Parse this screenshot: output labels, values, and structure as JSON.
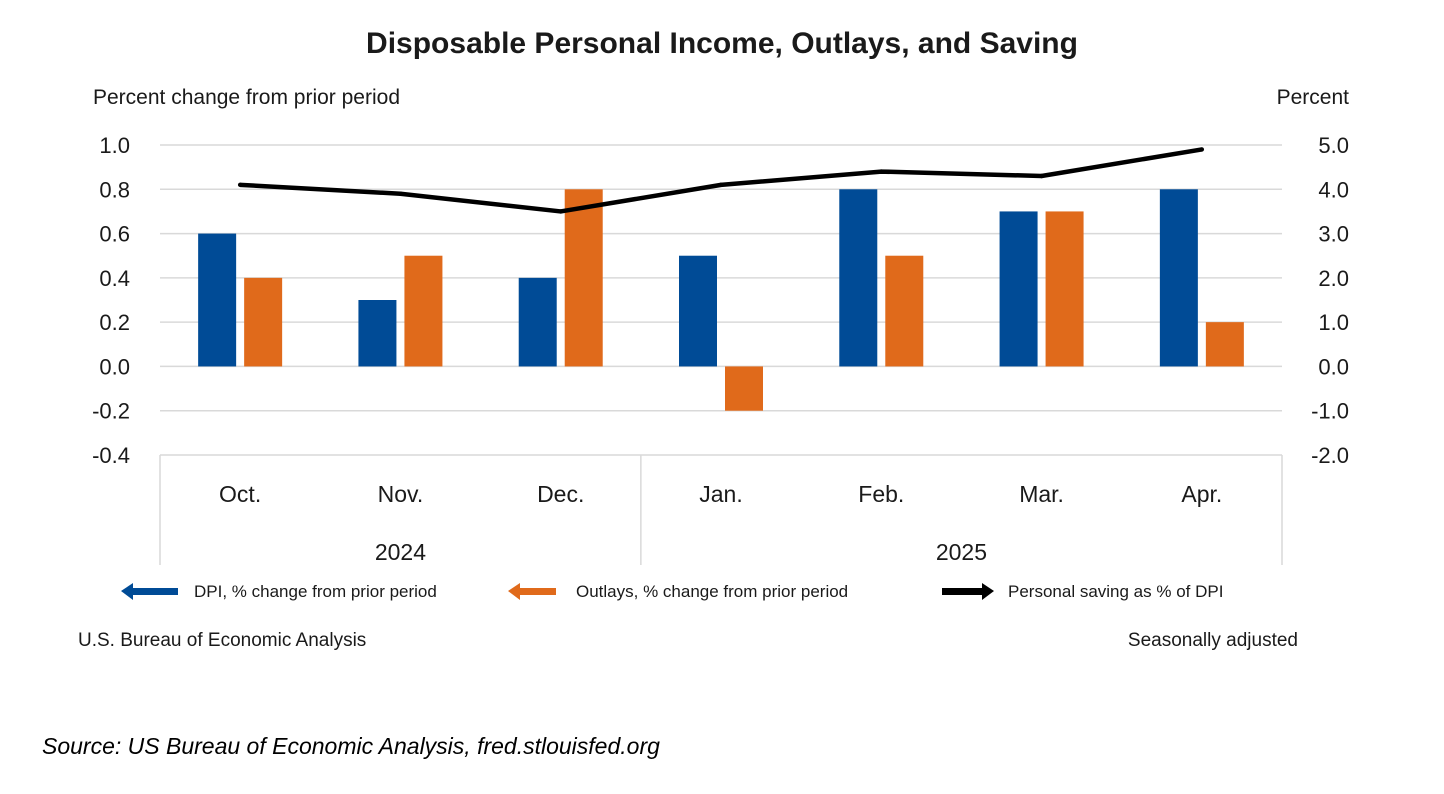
{
  "chart_data": {
    "type": "bar",
    "title": "Disposable Personal Income, Outlays, and Saving",
    "left_axis_label": "Percent change from prior period",
    "right_axis_label": "Percent",
    "categories": [
      "Oct.",
      "Nov.",
      "Dec.",
      "Jan.",
      "Feb.",
      "Mar.",
      "Apr."
    ],
    "year_groups": [
      {
        "label": "2024",
        "start": 0,
        "count": 3
      },
      {
        "label": "2025",
        "start": 3,
        "count": 4
      }
    ],
    "series": [
      {
        "name": "DPI, % change from prior period",
        "kind": "bar",
        "axis": "left",
        "color": "#004b96",
        "values": [
          0.6,
          0.3,
          0.4,
          0.5,
          0.8,
          0.7,
          0.8
        ]
      },
      {
        "name": "Outlays, % change from prior period",
        "kind": "bar",
        "axis": "left",
        "color": "#e06a1b",
        "values": [
          0.4,
          0.5,
          0.8,
          -0.2,
          0.5,
          0.7,
          0.2
        ]
      },
      {
        "name": "Personal saving as % of DPI",
        "kind": "line",
        "axis": "right",
        "color": "#000000",
        "values": [
          4.1,
          3.9,
          3.5,
          4.1,
          4.4,
          4.3,
          4.9
        ]
      }
    ],
    "left_ylim": [
      -0.4,
      1.0
    ],
    "right_ylim": [
      -2.0,
      5.0
    ],
    "left_ticks": [
      "1.0",
      "0.8",
      "0.6",
      "0.4",
      "0.2",
      "0.0",
      "-0.2",
      "-0.4"
    ],
    "right_ticks": [
      "5.0",
      "4.0",
      "3.0",
      "2.0",
      "1.0",
      "0.0",
      "-1.0",
      "-2.0"
    ],
    "grid": true,
    "legend_position": "bottom"
  },
  "footer": {
    "left_note": "U.S. Bureau of Economic Analysis",
    "right_note": "Seasonally adjusted"
  },
  "source_note": "Source: US Bureau of Economic Analysis, fred.stlouisfed.org"
}
